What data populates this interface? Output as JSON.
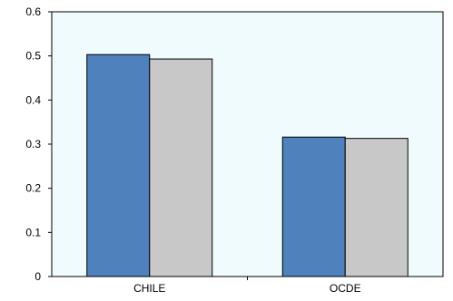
{
  "chart_data": {
    "type": "bar",
    "categories": [
      "CHILE",
      "OCDE"
    ],
    "series": [
      {
        "values": [
          0.503,
          0.316
        ],
        "color": "#4f81bd"
      },
      {
        "values": [
          0.493,
          0.313
        ],
        "color": "#c8c8c8"
      }
    ],
    "ylim": [
      0,
      0.6
    ],
    "yticks": [
      0,
      0.1,
      0.2,
      0.3,
      0.4,
      0.5,
      0.6
    ],
    "ytick_labels": [
      "0",
      "0.1",
      "0.2",
      "0.3",
      "0.4",
      "0.5",
      "0.6"
    ],
    "title": "",
    "xlabel": "",
    "ylabel": "",
    "grid": false,
    "plot_background": "#f0fbfd"
  }
}
